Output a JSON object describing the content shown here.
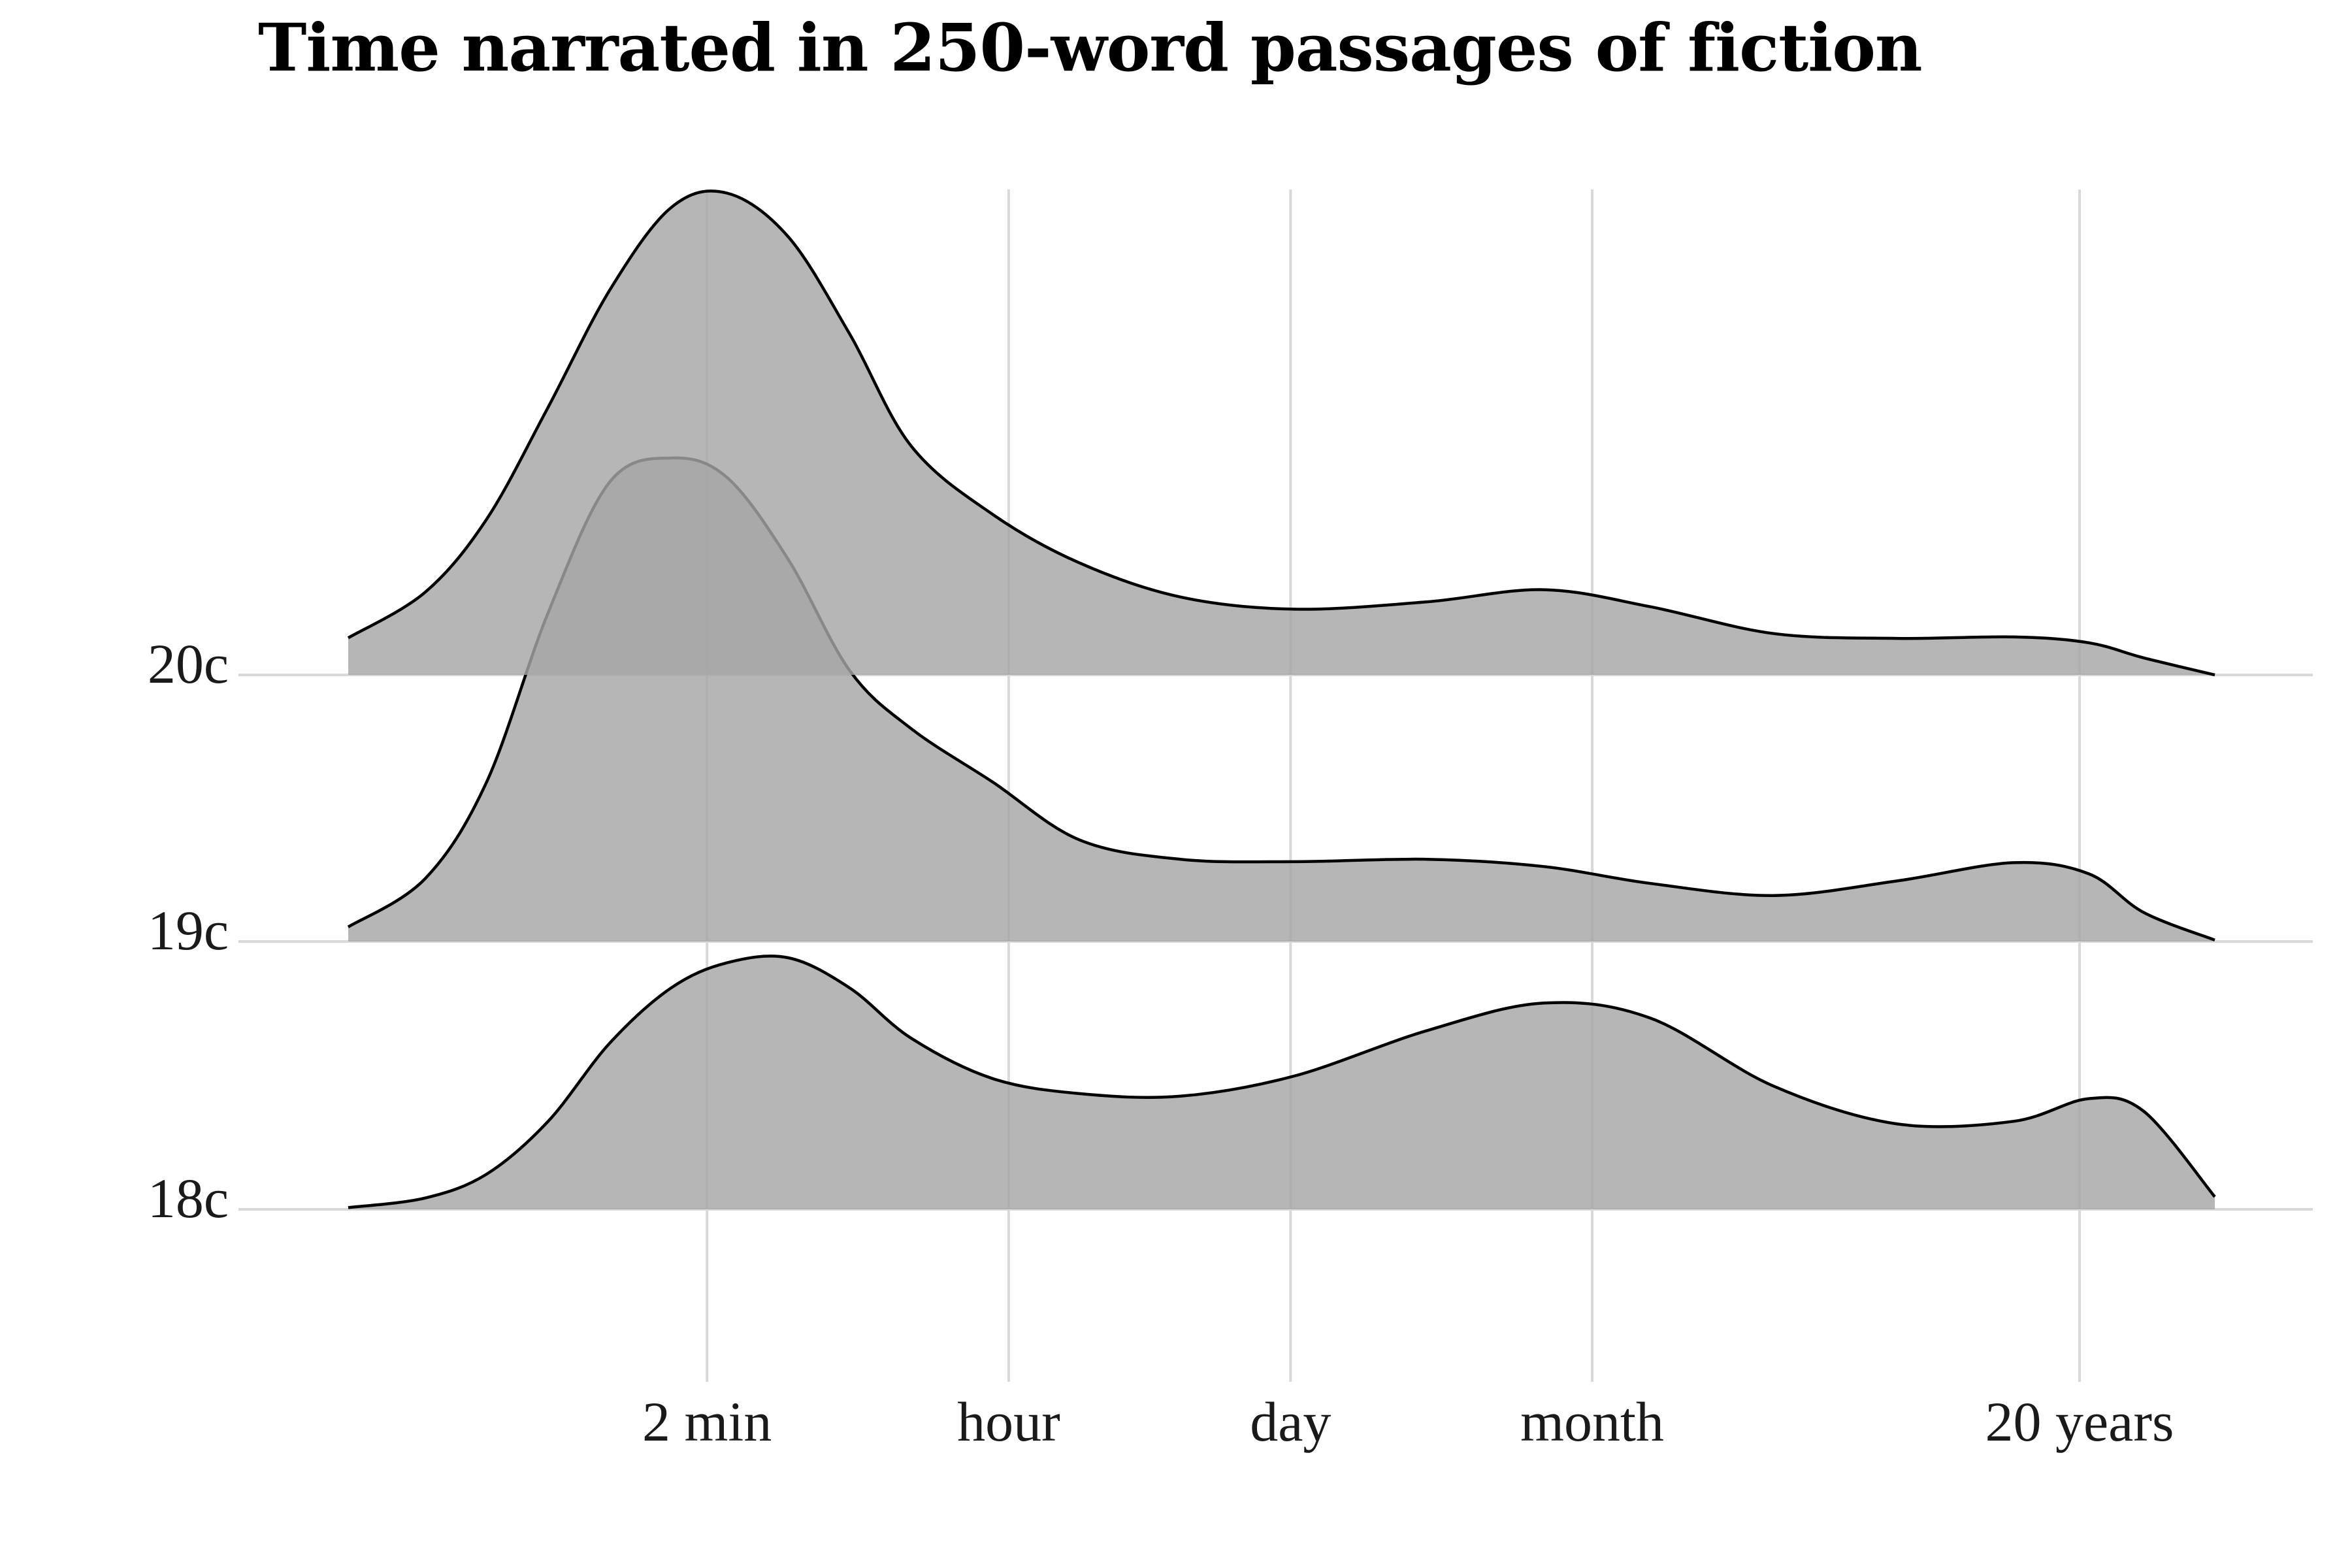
{
  "chart_data": {
    "type": "ridgeline",
    "title": "Time narrated in 250-word passages of fiction",
    "xlabel": "",
    "ylabel": "",
    "x_scale": "log",
    "x_ticks": [
      {
        "label": "2 min",
        "seconds": 120
      },
      {
        "label": "hour",
        "seconds": 3600
      },
      {
        "label": "day",
        "seconds": 86400
      },
      {
        "label": "month",
        "seconds": 2592000
      },
      {
        "label": "20 years",
        "seconds": 631152000
      }
    ],
    "xlim_seconds": [
      2.1,
      2900000000
    ],
    "grid": "vertical",
    "legend": "none",
    "fill_color": "#a6a6a6",
    "line_color": "#000000",
    "series": [
      {
        "name": "20c",
        "x_seconds": [
          2.1,
          5,
          10,
          20,
          40,
          80,
          150,
          300,
          600,
          1200,
          3000,
          8000,
          25000,
          90000,
          400000,
          1500000,
          5000000,
          20000000,
          80000000,
          300000000,
          700000000,
          1300000000,
          2900000000
        ],
        "density": [
          0.076,
          0.17,
          0.32,
          0.55,
          0.79,
          0.96,
          0.99,
          0.9,
          0.7,
          0.47,
          0.33,
          0.23,
          0.16,
          0.135,
          0.15,
          0.175,
          0.14,
          0.085,
          0.075,
          0.078,
          0.066,
          0.035,
          0.0
        ]
      },
      {
        "name": "19c",
        "x_seconds": [
          2.1,
          5,
          10,
          20,
          40,
          80,
          150,
          300,
          600,
          1200,
          3000,
          8000,
          25000,
          90000,
          400000,
          1500000,
          5000000,
          20000000,
          80000000,
          300000000,
          700000000,
          1300000000,
          2900000000
        ],
        "density": [
          0.03,
          0.13,
          0.33,
          0.68,
          0.95,
          1.0,
          0.96,
          0.79,
          0.56,
          0.44,
          0.33,
          0.21,
          0.17,
          0.165,
          0.17,
          0.155,
          0.12,
          0.095,
          0.125,
          0.163,
          0.14,
          0.06,
          0.003
        ]
      },
      {
        "name": "18c",
        "x_seconds": [
          2.1,
          5,
          10,
          20,
          40,
          80,
          150,
          300,
          600,
          1200,
          3000,
          8000,
          25000,
          90000,
          400000,
          1500000,
          5000000,
          20000000,
          80000000,
          300000000,
          700000000,
          1300000000,
          2900000000
        ],
        "density": [
          0.007,
          0.045,
          0.14,
          0.35,
          0.66,
          0.88,
          0.98,
          1.0,
          0.88,
          0.68,
          0.52,
          0.46,
          0.45,
          0.53,
          0.71,
          0.82,
          0.76,
          0.49,
          0.34,
          0.35,
          0.44,
          0.39,
          0.05
        ]
      }
    ]
  }
}
